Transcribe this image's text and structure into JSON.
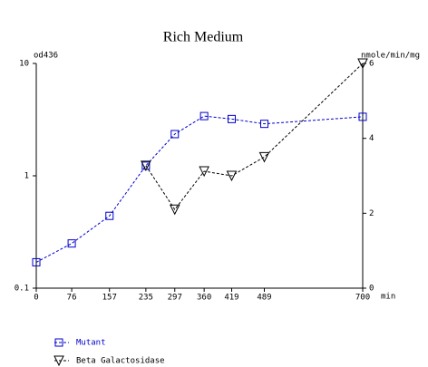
{
  "chart_data": {
    "type": "line",
    "title": "Rich Medium",
    "y_label": "od436",
    "y2_label": "nmole/min/mg",
    "x_label": "min",
    "x": [
      0,
      76,
      157,
      235,
      297,
      360,
      419,
      489,
      700
    ],
    "xlim": [
      0,
      700
    ],
    "xticks": [
      0,
      76,
      157,
      235,
      297,
      360,
      419,
      489,
      700
    ],
    "ylim": [
      0.1,
      10
    ],
    "yticks": [
      10,
      1,
      0.1
    ],
    "ylog": true,
    "y2lim": [
      0,
      6
    ],
    "y2ticks": [
      0,
      2,
      4,
      6
    ],
    "legend": "bottom-left",
    "series": [
      {
        "name": "Mutant",
        "color": "#0000cc",
        "marker": "square",
        "values": [
          0.17,
          0.25,
          0.44,
          1.23,
          2.35,
          3.4,
          3.2,
          2.9,
          3.35
        ]
      },
      {
        "name": "Beta Galactosidase",
        "color": "#000000",
        "marker": "triangle-down",
        "axis": "y2",
        "values": [
          null,
          null,
          null,
          3.27,
          2.1,
          3.12,
          3.0,
          3.5,
          6.0
        ]
      }
    ]
  }
}
